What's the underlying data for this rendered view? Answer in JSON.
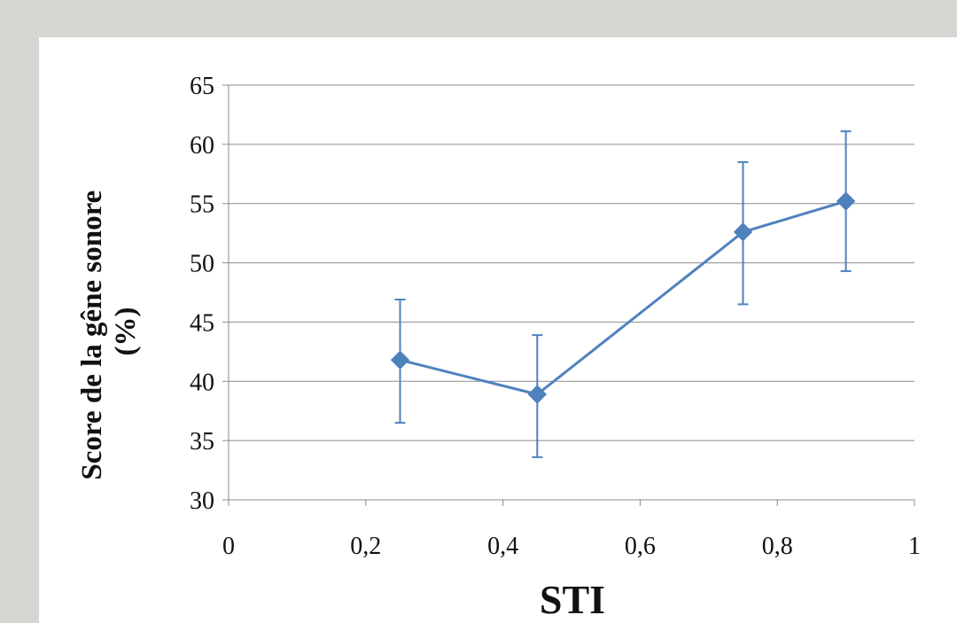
{
  "chart_data": {
    "type": "scatter",
    "xlabel": "STI",
    "ylabel": "Score de la gêne sonore (%)",
    "ylabel_lines": [
      "Score de la gêne sonore",
      "(%)"
    ],
    "xlim": [
      0,
      1
    ],
    "ylim": [
      30,
      65
    ],
    "x_ticks": [
      0,
      0.2,
      0.4,
      0.6,
      0.8,
      1
    ],
    "x_tick_labels": [
      "0",
      "0,2",
      "0,4",
      "0,6",
      "0,8",
      "1"
    ],
    "y_ticks": [
      30,
      35,
      40,
      45,
      50,
      55,
      60,
      65
    ],
    "y_tick_labels": [
      "30",
      "35",
      "40",
      "45",
      "50",
      "55",
      "60",
      "65"
    ],
    "grid": true,
    "series": [
      {
        "color": "#4f81bd",
        "marker": "diamond",
        "lines": true,
        "points": [
          {
            "x": 0.25,
            "y": 41.8,
            "err_low": 36.5,
            "err_high": 46.9
          },
          {
            "x": 0.45,
            "y": 38.9,
            "err_low": 33.6,
            "err_high": 43.9
          },
          {
            "x": 0.75,
            "y": 52.6,
            "err_low": 46.5,
            "err_high": 58.5
          },
          {
            "x": 0.9,
            "y": 55.2,
            "err_low": 49.3,
            "err_high": 61.1
          }
        ]
      }
    ]
  }
}
